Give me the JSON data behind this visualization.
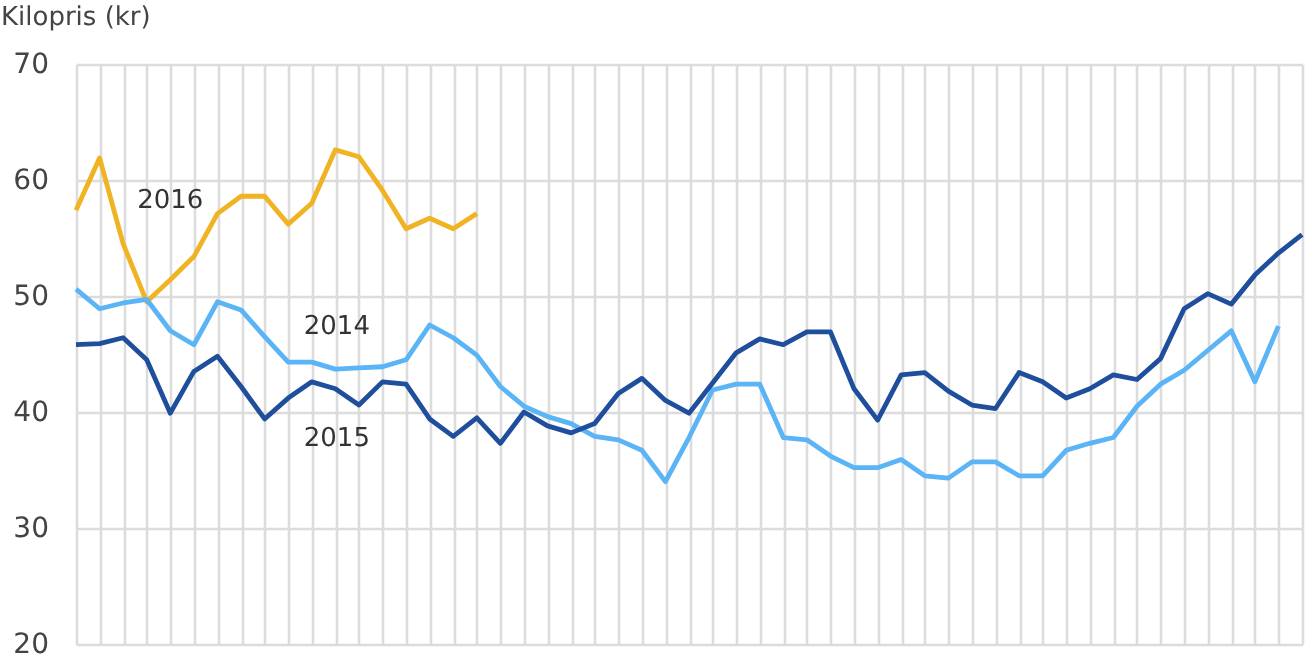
{
  "chart_data": {
    "type": "line",
    "ylabel": "Kilopris  (kr)",
    "categories": [
      null,
      null,
      null,
      null,
      null,
      null,
      null,
      null,
      null,
      null,
      null,
      null,
      null,
      null,
      null,
      null,
      null,
      null,
      null,
      null,
      null,
      null,
      null,
      null,
      null,
      null,
      null,
      null,
      null,
      null,
      null,
      null,
      null,
      null,
      null,
      null,
      null,
      null,
      null,
      null,
      null,
      null,
      null,
      null,
      null,
      null,
      null,
      null,
      null,
      null,
      null,
      null,
      null
    ],
    "series": [
      {
        "name": "2016",
        "color": "#f0b323",
        "values": [
          57.4,
          61.9,
          54.5,
          49.5,
          51.4,
          53.4,
          57.1,
          58.6,
          58.6,
          56.2,
          58.0,
          62.6,
          62.0,
          59.1,
          55.8,
          56.7,
          55.8,
          57.1,
          null,
          null,
          null,
          null,
          null,
          null,
          null,
          null,
          null,
          null,
          null,
          null,
          null,
          null,
          null,
          null,
          null,
          null,
          null,
          null,
          null,
          null,
          null,
          null,
          null,
          null,
          null,
          null,
          null,
          null,
          null,
          null,
          null,
          null,
          null
        ]
      },
      {
        "name": "2014",
        "color": "#5ab4f5",
        "values": [
          50.6,
          48.9,
          49.4,
          49.7,
          47.0,
          45.8,
          49.5,
          48.8,
          46.5,
          44.3,
          44.3,
          43.7,
          43.8,
          43.9,
          44.5,
          47.5,
          46.4,
          44.9,
          42.2,
          40.5,
          39.6,
          39.0,
          37.9,
          37.6,
          36.7,
          34.0,
          37.8,
          41.9,
          42.4,
          42.4,
          37.8,
          37.6,
          36.2,
          35.2,
          35.2,
          35.9,
          34.5,
          34.3,
          35.7,
          35.7,
          34.5,
          34.5,
          36.7,
          37.3,
          37.8,
          40.5,
          42.4,
          43.6,
          45.3,
          47.0,
          42.6,
          47.4,
          null
        ]
      },
      {
        "name": "2015",
        "color": "#1f4e9c",
        "values": [
          45.8,
          45.9,
          46.4,
          44.5,
          39.9,
          43.5,
          44.8,
          42.2,
          39.4,
          41.2,
          42.6,
          42.0,
          40.6,
          42.6,
          42.4,
          39.4,
          37.9,
          39.5,
          37.3,
          40.0,
          38.8,
          38.2,
          39.0,
          41.6,
          42.9,
          41.0,
          39.9,
          42.5,
          45.1,
          46.3,
          45.8,
          46.9,
          46.9,
          42.0,
          39.3,
          43.2,
          43.4,
          41.8,
          40.6,
          40.3,
          43.4,
          42.6,
          41.2,
          42.0,
          43.2,
          42.8,
          44.6,
          48.9,
          50.2,
          49.3,
          51.8,
          53.7,
          55.3
        ]
      }
    ],
    "ylim": [
      20,
      70
    ],
    "yticks": [
      20,
      30,
      40,
      50,
      60,
      70
    ],
    "grid": true
  }
}
